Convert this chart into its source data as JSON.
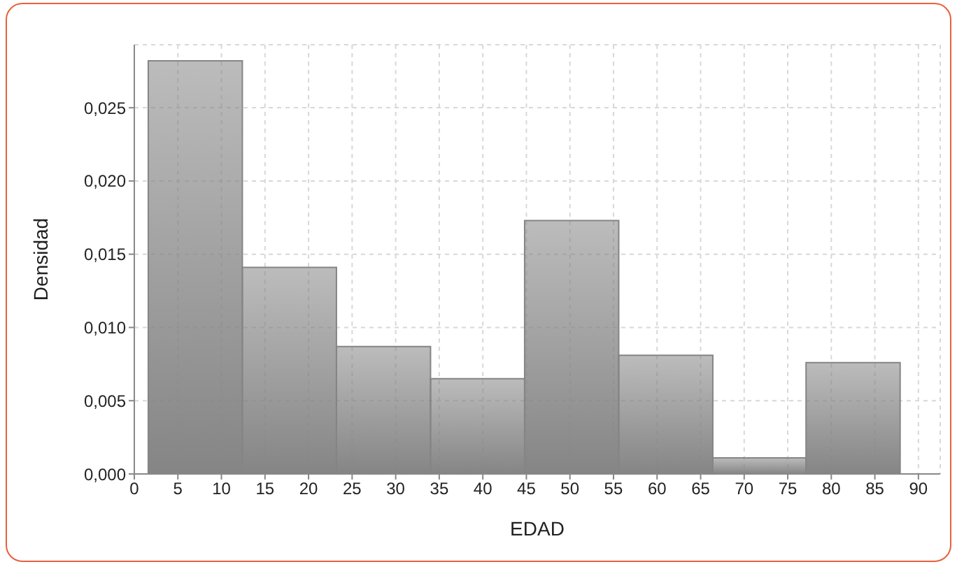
{
  "chart_data": {
    "type": "histogram",
    "xlabel": "EDAD",
    "ylabel": "Densidad",
    "bins": [
      1.6,
      12.4,
      23.2,
      34.0,
      44.8,
      55.6,
      66.4,
      77.1,
      87.9
    ],
    "values": [
      0.0282,
      0.0141,
      0.0087,
      0.0065,
      0.0173,
      0.0081,
      0.0011,
      0.0076
    ],
    "color": "#858585",
    "xlim": [
      0,
      92.5
    ],
    "xticks": [
      0,
      5,
      10,
      15,
      20,
      25,
      30,
      35,
      40,
      45,
      50,
      55,
      60,
      65,
      70,
      75,
      80,
      85,
      90
    ],
    "ylim": [
      0,
      0.0293
    ],
    "yticks": [
      {
        "value": 0,
        "label": "0,000"
      },
      {
        "value": 0.005,
        "label": "0,005"
      },
      {
        "value": 0.01,
        "label": "0,010"
      },
      {
        "value": 0.015,
        "label": "0,015"
      },
      {
        "value": 0.02,
        "label": "0,020"
      },
      {
        "value": 0.025,
        "label": "0,025"
      }
    ],
    "grid": true
  }
}
